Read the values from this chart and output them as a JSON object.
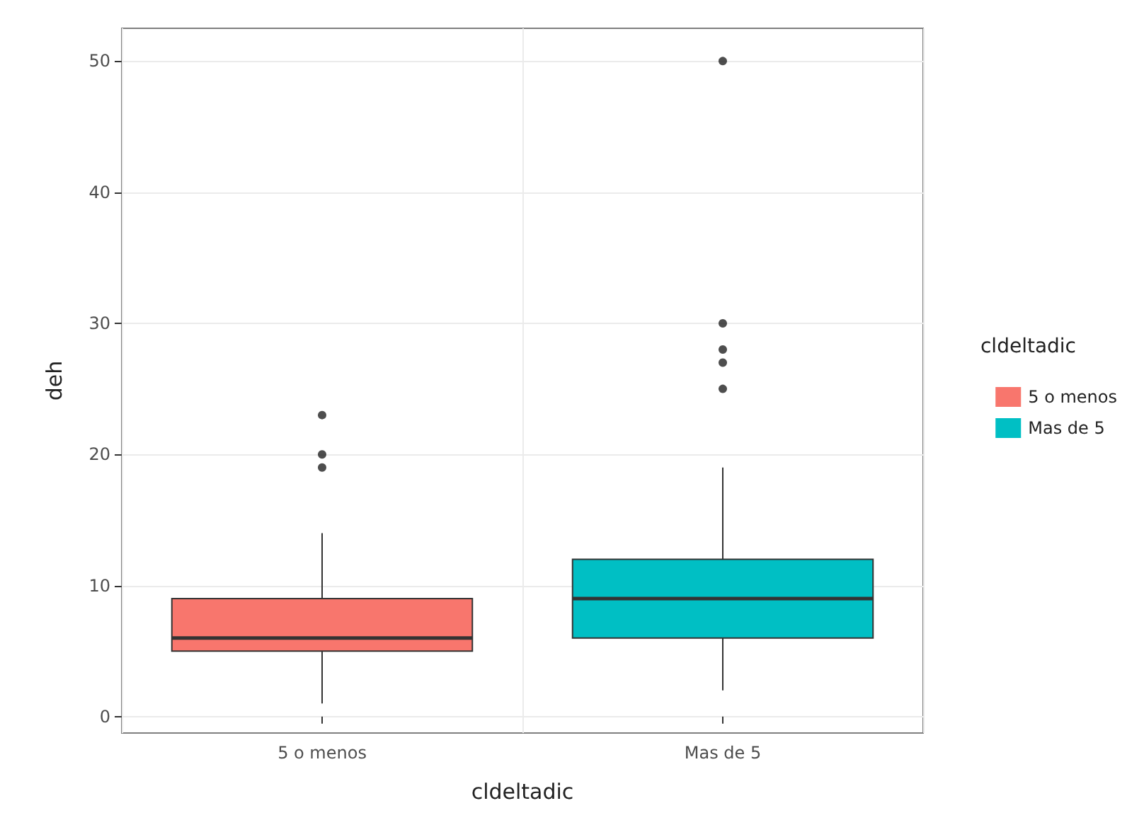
{
  "chart_data": {
    "type": "box",
    "xlabel": "cldeltadic",
    "ylabel": "deh",
    "legend_title": "cldeltadic",
    "categories": [
      "5 o menos",
      "Mas de 5"
    ],
    "series": [
      {
        "name": "5 o menos",
        "color": "#f8766d",
        "boxes": [
          {
            "low": 1,
            "q1": 5,
            "median": 6,
            "q3": 9,
            "high": 14,
            "outliers": [
              19,
              20,
              23
            ]
          },
          null
        ]
      },
      {
        "name": "Mas de 5",
        "color": "#00bfc4",
        "boxes": [
          null,
          {
            "low": 2,
            "q1": 6,
            "median": 9,
            "q3": 12,
            "high": 19,
            "outliers": [
              25,
              27,
              28,
              30,
              50
            ]
          }
        ]
      }
    ],
    "ylim": [
      -1.25,
      52.5
    ],
    "yticks": [
      0,
      10,
      20,
      30,
      40,
      50
    ],
    "grid": true,
    "legend": "right"
  }
}
